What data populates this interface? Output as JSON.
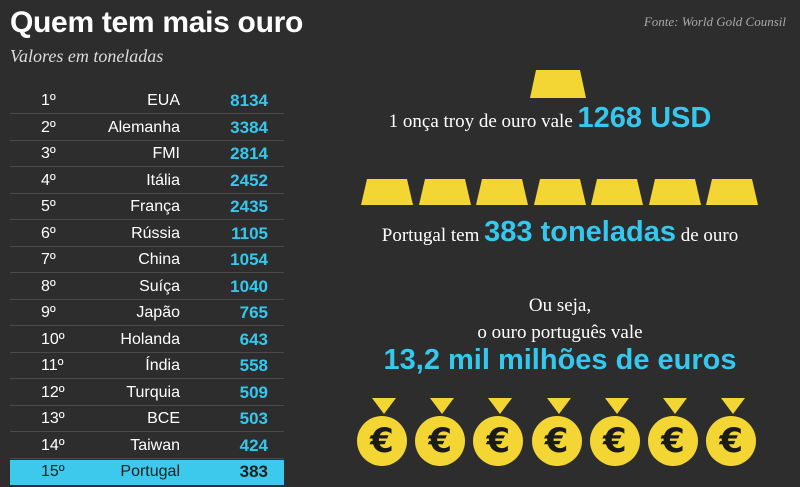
{
  "title": "Quem tem mais ouro",
  "subtitle": "Valores em toneladas",
  "source": "Fonte: World Gold Counsil",
  "colors": {
    "background": "#2d2d2d",
    "accent": "#35c8ee",
    "gold": "#f3d534",
    "highlight_row": "#3cc9ec"
  },
  "chart_data": {
    "type": "table",
    "columns": [
      "rank",
      "country",
      "tonnes"
    ],
    "rows": [
      {
        "rank": "1º",
        "country": "EUA",
        "value": "8134"
      },
      {
        "rank": "2º",
        "country": "Alemanha",
        "value": "3384"
      },
      {
        "rank": "3º",
        "country": "FMI",
        "value": "2814"
      },
      {
        "rank": "4º",
        "country": "Itália",
        "value": "2452"
      },
      {
        "rank": "5º",
        "country": "França",
        "value": "2435"
      },
      {
        "rank": "6º",
        "country": "Rússia",
        "value": "1105"
      },
      {
        "rank": "7º",
        "country": "China",
        "value": "1054"
      },
      {
        "rank": "8º",
        "country": "Suíça",
        "value": "1040"
      },
      {
        "rank": "9º",
        "country": "Japão",
        "value": "765"
      },
      {
        "rank": "10º",
        "country": "Holanda",
        "value": "643"
      },
      {
        "rank": "11º",
        "country": "Índia",
        "value": "558"
      },
      {
        "rank": "12º",
        "country": "Turquia",
        "value": "509"
      },
      {
        "rank": "13º",
        "country": "BCE",
        "value": "503"
      },
      {
        "rank": "14º",
        "country": "Taiwan",
        "value": "424"
      },
      {
        "rank": "15º",
        "country": "Portugal",
        "value": "383",
        "highlighted": true
      }
    ]
  },
  "facts": {
    "ounce_text": "1 onça troy de ouro vale",
    "ounce_value": "1268 USD",
    "portugal_prefix": "Portugal tem",
    "portugal_value": "383 toneladas",
    "portugal_suffix": "de ouro",
    "ou_seja": "Ou seja,",
    "vale_text": "o ouro português vale",
    "total_value": "13,2 mil milhões de euros"
  },
  "icons": {
    "gold_bar": "gold-bar-icon",
    "coin": "euro-coin-icon",
    "coin_symbol": "€",
    "gold_bar_row_count": 7,
    "coin_count": 7
  }
}
